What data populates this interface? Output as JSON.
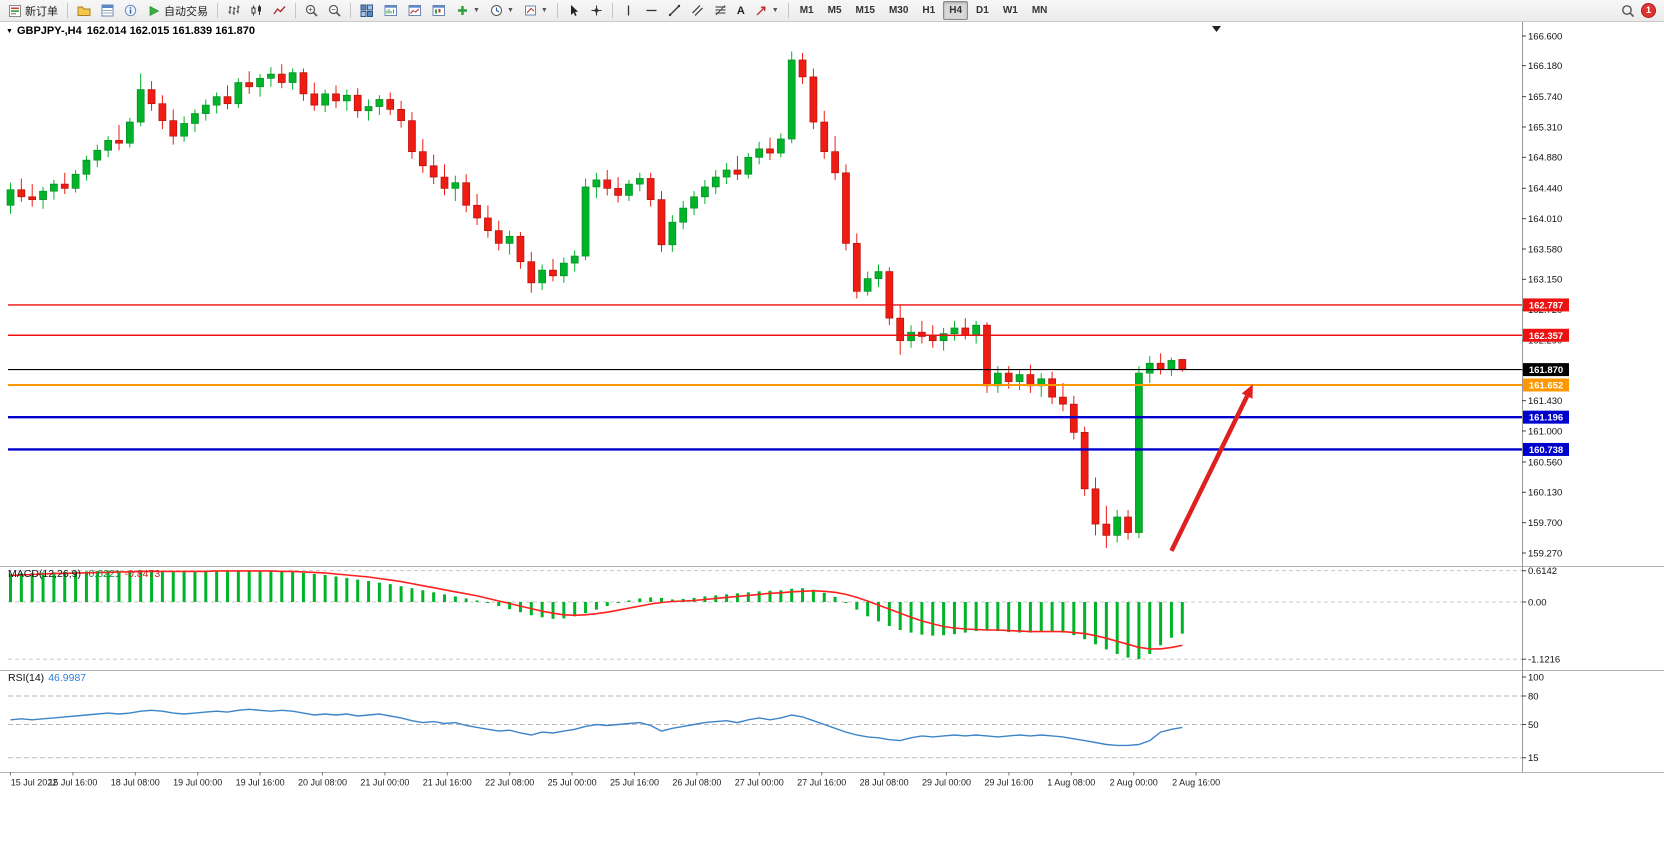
{
  "toolbar": {
    "new_order_label": "新订单",
    "autotrading_label": "自动交易",
    "timeframes": [
      "M1",
      "M5",
      "M15",
      "M30",
      "H1",
      "H4",
      "D1",
      "W1",
      "MN"
    ],
    "active_timeframe": "H4",
    "notification_count": "1"
  },
  "chart": {
    "symbol_title": "GBPJPY-,H4",
    "ohlc_text": "162.014 162.015 161.839 161.870"
  },
  "indicators": {
    "macd": {
      "title": "MACD(12,26,9)",
      "value": "-0.6221",
      "signal_value": "-0.8473"
    },
    "rsi": {
      "title": "RSI(14)",
      "value": "46.9987"
    }
  },
  "chart_data": {
    "type": "candlestick",
    "symbol": "GBPJPY",
    "timeframe": "H4",
    "last_ohlc": {
      "open": 162.014,
      "high": 162.015,
      "low": 161.839,
      "close": 161.87
    },
    "colors": {
      "bull": "#00b42a",
      "bull_edge": "#068b26",
      "bear": "#ee1c12",
      "bear_edge": "#b3120b",
      "macd_hist": "#00b42a",
      "macd_signal": "#ff2020",
      "rsi_line": "#3d85c8"
    },
    "price_axis": {
      "labels": [
        "166.600",
        "166.180",
        "165.740",
        "165.310",
        "164.880",
        "164.440",
        "164.010",
        "163.580",
        "163.150",
        "162.720",
        "162.290",
        "161.860",
        "161.430",
        "161.000",
        "160.560",
        "160.130",
        "159.700",
        "159.270"
      ]
    },
    "time_axis": {
      "labels": [
        "15 Jul 2022",
        "15 Jul 16:00",
        "18 Jul 08:00",
        "19 Jul 00:00",
        "19 Jul 16:00",
        "20 Jul 08:00",
        "21 Jul 00:00",
        "21 Jul 16:00",
        "22 Jul 08:00",
        "25 Jul 00:00",
        "25 Jul 16:00",
        "26 Jul 08:00",
        "27 Jul 00:00",
        "27 Jul 16:00",
        "28 Jul 08:00",
        "29 Jul 00:00",
        "29 Jul 16:00",
        "1 Aug 08:00",
        "2 Aug 00:00",
        "2 Aug 16:00"
      ]
    },
    "hlines": [
      {
        "price": 162.787,
        "label": "162.787",
        "color": "#ee1111",
        "width": 1.4
      },
      {
        "price": 162.357,
        "label": "162.357",
        "color": "#ee1111",
        "width": 1.4
      },
      {
        "price": 161.87,
        "label": "161.870",
        "color": "#000000",
        "width": 1.1
      },
      {
        "price": 161.652,
        "label": "161.652",
        "color": "#ff9800",
        "width": 2
      },
      {
        "price": 161.196,
        "label": "161.196",
        "color": "#0000cd",
        "width": 2.4
      },
      {
        "price": 160.738,
        "label": "160.738",
        "color": "#0000cd",
        "width": 2.4
      }
    ],
    "arrow_annotation": {
      "from_bar": 107,
      "from_price": 159.3,
      "to_bar": 114.5,
      "to_price": 161.66,
      "color": "#e02020"
    },
    "candles": [
      [
        164.2,
        164.52,
        164.08,
        164.42
      ],
      [
        164.42,
        164.58,
        164.25,
        164.32
      ],
      [
        164.32,
        164.5,
        164.18,
        164.28
      ],
      [
        164.28,
        164.46,
        164.15,
        164.4
      ],
      [
        164.4,
        164.56,
        164.28,
        164.5
      ],
      [
        164.5,
        164.66,
        164.36,
        164.44
      ],
      [
        164.44,
        164.7,
        164.38,
        164.64
      ],
      [
        164.64,
        164.9,
        164.55,
        164.84
      ],
      [
        164.84,
        165.06,
        164.74,
        164.98
      ],
      [
        164.98,
        165.18,
        164.88,
        165.12
      ],
      [
        165.12,
        165.34,
        164.98,
        165.08
      ],
      [
        165.08,
        165.44,
        165.02,
        165.38
      ],
      [
        165.38,
        166.07,
        165.32,
        165.84
      ],
      [
        165.84,
        165.96,
        165.54,
        165.64
      ],
      [
        165.64,
        165.76,
        165.28,
        165.4
      ],
      [
        165.4,
        165.56,
        165.06,
        165.18
      ],
      [
        165.18,
        165.46,
        165.1,
        165.36
      ],
      [
        165.36,
        165.56,
        165.24,
        165.5
      ],
      [
        165.5,
        165.7,
        165.4,
        165.62
      ],
      [
        165.62,
        165.8,
        165.5,
        165.74
      ],
      [
        165.74,
        165.9,
        165.56,
        165.64
      ],
      [
        165.64,
        166.0,
        165.58,
        165.94
      ],
      [
        165.94,
        166.1,
        165.78,
        165.88
      ],
      [
        165.88,
        166.06,
        165.74,
        166.0
      ],
      [
        166.0,
        166.16,
        165.88,
        166.06
      ],
      [
        166.06,
        166.2,
        165.86,
        165.94
      ],
      [
        165.94,
        166.14,
        165.84,
        166.08
      ],
      [
        166.08,
        166.14,
        165.68,
        165.78
      ],
      [
        165.78,
        165.94,
        165.54,
        165.62
      ],
      [
        165.62,
        165.84,
        165.52,
        165.78
      ],
      [
        165.78,
        165.9,
        165.58,
        165.68
      ],
      [
        165.68,
        165.84,
        165.54,
        165.76
      ],
      [
        165.76,
        165.86,
        165.44,
        165.54
      ],
      [
        165.54,
        165.7,
        165.4,
        165.6
      ],
      [
        165.6,
        165.76,
        165.48,
        165.7
      ],
      [
        165.7,
        165.8,
        165.48,
        165.56
      ],
      [
        165.56,
        165.68,
        165.3,
        165.4
      ],
      [
        165.4,
        165.52,
        164.86,
        164.96
      ],
      [
        164.96,
        165.14,
        164.66,
        164.76
      ],
      [
        164.76,
        164.92,
        164.5,
        164.6
      ],
      [
        164.6,
        164.78,
        164.34,
        164.44
      ],
      [
        164.44,
        164.62,
        164.26,
        164.52
      ],
      [
        164.52,
        164.64,
        164.1,
        164.2
      ],
      [
        164.2,
        164.36,
        163.92,
        164.02
      ],
      [
        164.02,
        164.2,
        163.74,
        163.84
      ],
      [
        163.84,
        163.98,
        163.56,
        163.66
      ],
      [
        163.66,
        163.84,
        163.5,
        163.76
      ],
      [
        163.76,
        163.82,
        163.3,
        163.4
      ],
      [
        163.4,
        163.54,
        162.96,
        163.1
      ],
      [
        163.1,
        163.36,
        163.0,
        163.28
      ],
      [
        163.28,
        163.44,
        163.12,
        163.2
      ],
      [
        163.2,
        163.46,
        163.1,
        163.38
      ],
      [
        163.38,
        163.56,
        163.26,
        163.48
      ],
      [
        163.48,
        164.58,
        163.42,
        164.46
      ],
      [
        164.46,
        164.66,
        164.3,
        164.56
      ],
      [
        164.56,
        164.7,
        164.34,
        164.44
      ],
      [
        164.44,
        164.6,
        164.24,
        164.34
      ],
      [
        164.34,
        164.56,
        164.26,
        164.5
      ],
      [
        164.5,
        164.66,
        164.4,
        164.58
      ],
      [
        164.58,
        164.66,
        164.18,
        164.28
      ],
      [
        164.28,
        164.4,
        163.54,
        163.64
      ],
      [
        163.64,
        164.06,
        163.54,
        163.96
      ],
      [
        163.96,
        164.26,
        163.86,
        164.16
      ],
      [
        164.16,
        164.4,
        164.06,
        164.32
      ],
      [
        164.32,
        164.56,
        164.22,
        164.46
      ],
      [
        164.46,
        164.7,
        164.36,
        164.6
      ],
      [
        164.6,
        164.8,
        164.5,
        164.7
      ],
      [
        164.7,
        164.9,
        164.56,
        164.64
      ],
      [
        164.64,
        164.94,
        164.58,
        164.88
      ],
      [
        164.88,
        165.1,
        164.78,
        165.0
      ],
      [
        165.0,
        165.16,
        164.84,
        164.94
      ],
      [
        164.94,
        165.22,
        164.88,
        165.14
      ],
      [
        165.14,
        166.38,
        165.08,
        166.26
      ],
      [
        166.26,
        166.36,
        165.92,
        166.02
      ],
      [
        166.02,
        166.14,
        165.28,
        165.38
      ],
      [
        165.38,
        165.54,
        164.86,
        164.96
      ],
      [
        164.96,
        165.18,
        164.56,
        164.66
      ],
      [
        164.66,
        164.78,
        163.56,
        163.66
      ],
      [
        163.66,
        163.8,
        162.88,
        162.98
      ],
      [
        162.98,
        163.26,
        162.92,
        163.16
      ],
      [
        163.16,
        163.36,
        163.04,
        163.26
      ],
      [
        163.26,
        163.32,
        162.5,
        162.6
      ],
      [
        162.6,
        162.78,
        162.08,
        162.28
      ],
      [
        162.28,
        162.5,
        162.18,
        162.4
      ],
      [
        162.4,
        162.56,
        162.24,
        162.34
      ],
      [
        162.34,
        162.5,
        162.18,
        162.28
      ],
      [
        162.28,
        162.46,
        162.14,
        162.38
      ],
      [
        162.38,
        162.56,
        162.28,
        162.46
      ],
      [
        162.46,
        162.6,
        162.3,
        162.36
      ],
      [
        162.36,
        162.56,
        162.24,
        162.5
      ],
      [
        162.5,
        162.54,
        161.54,
        161.64
      ],
      [
        161.64,
        161.92,
        161.54,
        161.82
      ],
      [
        161.82,
        161.92,
        161.6,
        161.7
      ],
      [
        161.7,
        161.86,
        161.58,
        161.8
      ],
      [
        161.8,
        161.94,
        161.54,
        161.64
      ],
      [
        161.64,
        161.82,
        161.48,
        161.74
      ],
      [
        161.74,
        161.84,
        161.38,
        161.48
      ],
      [
        161.48,
        161.68,
        161.28,
        161.38
      ],
      [
        161.38,
        161.5,
        160.88,
        160.98
      ],
      [
        160.98,
        161.06,
        160.08,
        160.18
      ],
      [
        160.18,
        160.34,
        159.52,
        159.68
      ],
      [
        159.68,
        159.94,
        159.34,
        159.52
      ],
      [
        159.52,
        159.88,
        159.42,
        159.78
      ],
      [
        159.78,
        159.88,
        159.46,
        159.56
      ],
      [
        159.56,
        161.92,
        159.48,
        161.82
      ],
      [
        161.82,
        162.06,
        161.68,
        161.96
      ],
      [
        161.96,
        162.1,
        161.8,
        161.88
      ],
      [
        161.88,
        162.04,
        161.78,
        162.0
      ],
      [
        162.014,
        162.015,
        161.839,
        161.87
      ]
    ],
    "macd": {
      "axis": [
        {
          "label": "0.6142",
          "value": 0.6142
        },
        {
          "label": "0.00",
          "value": 0
        },
        {
          "label": "-1.1216",
          "value": -1.1216
        }
      ],
      "histogram": [
        0.55,
        0.56,
        0.57,
        0.58,
        0.58,
        0.59,
        0.6,
        0.6,
        0.61,
        0.61,
        0.6,
        0.61,
        0.62,
        0.62,
        0.61,
        0.6,
        0.6,
        0.61,
        0.61,
        0.62,
        0.61,
        0.62,
        0.61,
        0.6,
        0.61,
        0.6,
        0.59,
        0.57,
        0.55,
        0.53,
        0.5,
        0.47,
        0.44,
        0.41,
        0.38,
        0.35,
        0.31,
        0.27,
        0.23,
        0.19,
        0.15,
        0.11,
        0.07,
        0.03,
        -0.02,
        -0.08,
        -0.14,
        -0.2,
        -0.26,
        -0.3,
        -0.33,
        -0.32,
        -0.28,
        -0.22,
        -0.15,
        -0.08,
        -0.02,
        0.03,
        0.07,
        0.09,
        0.08,
        0.05,
        0.06,
        0.08,
        0.11,
        0.13,
        0.15,
        0.17,
        0.19,
        0.21,
        0.22,
        0.23,
        0.26,
        0.27,
        0.24,
        0.18,
        0.1,
        -0.02,
        -0.15,
        -0.28,
        -0.38,
        -0.47,
        -0.55,
        -0.6,
        -0.64,
        -0.66,
        -0.65,
        -0.63,
        -0.6,
        -0.57,
        -0.56,
        -0.57,
        -0.59,
        -0.6,
        -0.6,
        -0.59,
        -0.58,
        -0.6,
        -0.65,
        -0.73,
        -0.83,
        -0.93,
        -1.02,
        -1.09,
        -1.12,
        -1.02,
        -0.85,
        -0.7,
        -0.62
      ],
      "signal": [
        0.52,
        0.53,
        0.54,
        0.55,
        0.56,
        0.56,
        0.57,
        0.57,
        0.58,
        0.58,
        0.59,
        0.59,
        0.6,
        0.6,
        0.6,
        0.6,
        0.6,
        0.6,
        0.6,
        0.61,
        0.61,
        0.61,
        0.61,
        0.61,
        0.61,
        0.6,
        0.6,
        0.59,
        0.58,
        0.57,
        0.55,
        0.53,
        0.51,
        0.49,
        0.46,
        0.43,
        0.4,
        0.36,
        0.32,
        0.28,
        0.24,
        0.2,
        0.16,
        0.12,
        0.07,
        0.02,
        -0.03,
        -0.08,
        -0.13,
        -0.18,
        -0.22,
        -0.25,
        -0.26,
        -0.25,
        -0.23,
        -0.2,
        -0.16,
        -0.12,
        -0.08,
        -0.04,
        -0.01,
        0.01,
        0.02,
        0.03,
        0.05,
        0.07,
        0.09,
        0.11,
        0.13,
        0.15,
        0.17,
        0.18,
        0.2,
        0.21,
        0.22,
        0.21,
        0.19,
        0.15,
        0.09,
        0.02,
        -0.06,
        -0.14,
        -0.22,
        -0.3,
        -0.37,
        -0.43,
        -0.48,
        -0.51,
        -0.53,
        -0.54,
        -0.55,
        -0.55,
        -0.56,
        -0.57,
        -0.58,
        -0.58,
        -0.58,
        -0.58,
        -0.6,
        -0.62,
        -0.66,
        -0.71,
        -0.77,
        -0.83,
        -0.89,
        -0.92,
        -0.92,
        -0.89,
        -0.85
      ]
    },
    "rsi": {
      "axis": [
        {
          "label": "100",
          "value": 100
        },
        {
          "label": "80",
          "value": 80
        },
        {
          "label": "50",
          "value": 50
        },
        {
          "label": "15",
          "value": 15
        }
      ],
      "levels": [
        80,
        50,
        15
      ],
      "values": [
        55,
        56,
        55,
        56,
        57,
        58,
        59,
        60,
        61,
        62,
        61,
        62,
        64,
        65,
        64,
        62,
        61,
        62,
        63,
        64,
        63,
        65,
        66,
        65,
        64,
        65,
        64,
        62,
        60,
        61,
        60,
        61,
        59,
        60,
        61,
        59,
        57,
        54,
        52,
        53,
        51,
        52,
        49,
        47,
        45,
        43,
        44,
        41,
        39,
        42,
        41,
        43,
        45,
        48,
        50,
        49,
        50,
        51,
        52,
        49,
        43,
        46,
        48,
        50,
        52,
        53,
        54,
        52,
        55,
        57,
        55,
        57,
        60,
        58,
        54,
        50,
        46,
        42,
        39,
        37,
        36,
        34,
        33,
        36,
        38,
        37,
        38,
        39,
        38,
        39,
        38,
        37,
        38,
        39,
        38,
        39,
        38,
        37,
        35,
        33,
        31,
        29,
        28,
        28,
        29,
        33,
        42,
        45,
        47
      ]
    }
  }
}
